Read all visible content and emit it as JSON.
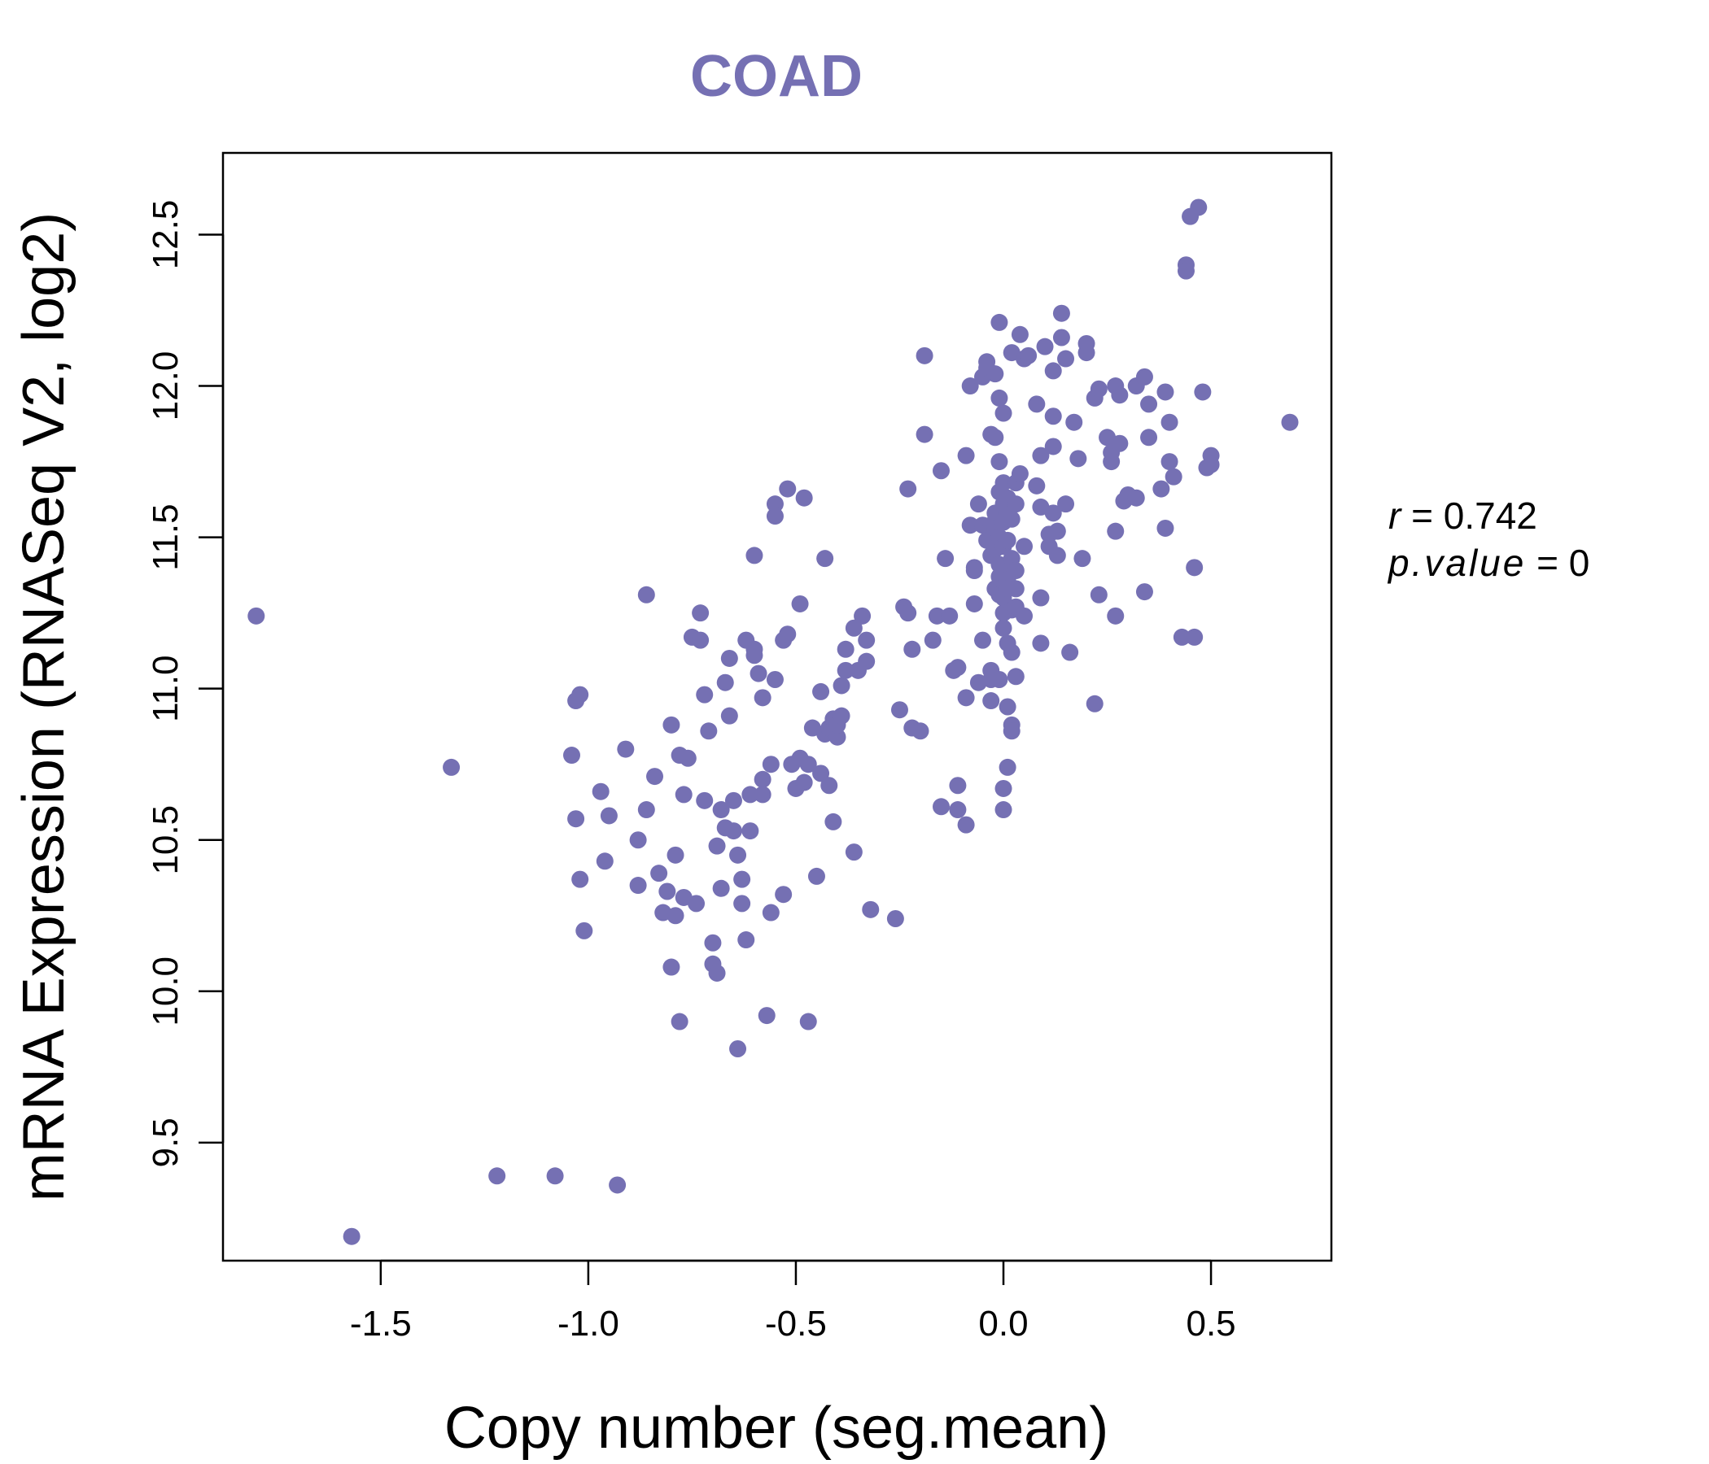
{
  "chart_data": {
    "type": "scatter",
    "title": "COAD",
    "xlabel": "Copy number (seg.mean)",
    "ylabel": "mRNA Expression (RNASeq V2, log2)",
    "xlim": [
      -1.88,
      0.79
    ],
    "ylim": [
      9.11,
      12.77
    ],
    "x_ticks": [
      -1.5,
      -1.0,
      -0.5,
      0.0,
      0.5
    ],
    "x_tick_labels": [
      "-1.5",
      "-1.0",
      "-0.5",
      "0.0",
      "0.5"
    ],
    "y_ticks": [
      9.5,
      10.0,
      10.5,
      11.0,
      11.5,
      12.0,
      12.5
    ],
    "y_tick_labels": [
      "9.5",
      "10.0",
      "10.5",
      "11.0",
      "11.5",
      "12.0",
      "12.5"
    ],
    "color": "#7570b3",
    "annotation": {
      "r_label": "r",
      "r_value": "0.742",
      "p_label": "p.value",
      "p_value": "0"
    },
    "points": [
      [
        -1.8,
        11.24
      ],
      [
        -1.57,
        9.19
      ],
      [
        -1.33,
        10.74
      ],
      [
        -1.22,
        9.39
      ],
      [
        -1.08,
        9.39
      ],
      [
        -0.93,
        9.36
      ],
      [
        -1.02,
        10.98
      ],
      [
        -1.03,
        10.96
      ],
      [
        -1.04,
        10.78
      ],
      [
        -1.03,
        10.57
      ],
      [
        -1.02,
        10.37
      ],
      [
        -1.01,
        10.2
      ],
      [
        -0.97,
        10.66
      ],
      [
        -0.96,
        10.43
      ],
      [
        -0.95,
        10.58
      ],
      [
        -0.91,
        10.8
      ],
      [
        -0.88,
        10.35
      ],
      [
        -0.88,
        10.5
      ],
      [
        -0.86,
        11.31
      ],
      [
        -0.86,
        10.6
      ],
      [
        -0.84,
        10.71
      ],
      [
        -0.83,
        10.39
      ],
      [
        -0.82,
        10.26
      ],
      [
        -0.81,
        10.33
      ],
      [
        -0.8,
        10.08
      ],
      [
        -0.8,
        10.88
      ],
      [
        -0.79,
        10.45
      ],
      [
        -0.78,
        10.78
      ],
      [
        -0.78,
        9.9
      ],
      [
        -0.79,
        10.25
      ],
      [
        -0.77,
        10.65
      ],
      [
        -0.77,
        10.31
      ],
      [
        -0.76,
        10.77
      ],
      [
        -0.75,
        11.17
      ],
      [
        -0.74,
        10.29
      ],
      [
        -0.73,
        11.25
      ],
      [
        -0.73,
        11.16
      ],
      [
        -0.72,
        10.98
      ],
      [
        -0.72,
        10.63
      ],
      [
        -0.71,
        10.86
      ],
      [
        -0.7,
        10.16
      ],
      [
        -0.7,
        10.09
      ],
      [
        -0.69,
        10.06
      ],
      [
        -0.69,
        10.48
      ],
      [
        -0.68,
        10.34
      ],
      [
        -0.68,
        10.6
      ],
      [
        -0.67,
        10.54
      ],
      [
        -0.67,
        11.02
      ],
      [
        -0.66,
        10.91
      ],
      [
        -0.66,
        11.1
      ],
      [
        -0.65,
        10.63
      ],
      [
        -0.65,
        10.53
      ],
      [
        -0.64,
        10.45
      ],
      [
        -0.64,
        9.81
      ],
      [
        -0.63,
        10.29
      ],
      [
        -0.63,
        10.37
      ],
      [
        -0.62,
        10.17
      ],
      [
        -0.62,
        11.16
      ],
      [
        -0.61,
        10.65
      ],
      [
        -0.61,
        10.53
      ],
      [
        -0.6,
        11.13
      ],
      [
        -0.6,
        11.44
      ],
      [
        -0.6,
        11.11
      ],
      [
        -0.59,
        11.05
      ],
      [
        -0.58,
        10.7
      ],
      [
        -0.58,
        10.65
      ],
      [
        -0.58,
        10.97
      ],
      [
        -0.57,
        9.92
      ],
      [
        -0.56,
        10.26
      ],
      [
        -0.56,
        10.75
      ],
      [
        -0.55,
        11.03
      ],
      [
        -0.55,
        11.61
      ],
      [
        -0.55,
        11.57
      ],
      [
        -0.53,
        10.32
      ],
      [
        -0.53,
        11.16
      ],
      [
        -0.52,
        11.18
      ],
      [
        -0.52,
        11.66
      ],
      [
        -0.51,
        10.75
      ],
      [
        -0.5,
        10.67
      ],
      [
        -0.49,
        11.28
      ],
      [
        -0.49,
        10.77
      ],
      [
        -0.48,
        10.69
      ],
      [
        -0.48,
        11.63
      ],
      [
        -0.47,
        10.75
      ],
      [
        -0.47,
        9.9
      ],
      [
        -0.46,
        10.87
      ],
      [
        -0.45,
        10.38
      ],
      [
        -0.44,
        10.72
      ],
      [
        -0.44,
        10.99
      ],
      [
        -0.43,
        10.85
      ],
      [
        -0.43,
        11.43
      ],
      [
        -0.42,
        10.68
      ],
      [
        -0.42,
        10.87
      ],
      [
        -0.41,
        10.56
      ],
      [
        -0.41,
        10.9
      ],
      [
        -0.4,
        10.84
      ],
      [
        -0.4,
        10.88
      ],
      [
        -0.39,
        10.91
      ],
      [
        -0.39,
        11.01
      ],
      [
        -0.38,
        11.06
      ],
      [
        -0.38,
        11.13
      ],
      [
        -0.36,
        11.2
      ],
      [
        -0.36,
        10.46
      ],
      [
        -0.35,
        11.06
      ],
      [
        -0.34,
        11.24
      ],
      [
        -0.33,
        11.09
      ],
      [
        -0.33,
        11.16
      ],
      [
        -0.32,
        10.27
      ],
      [
        -0.26,
        10.24
      ],
      [
        -0.25,
        10.93
      ],
      [
        -0.24,
        11.27
      ],
      [
        -0.23,
        11.25
      ],
      [
        -0.23,
        11.66
      ],
      [
        -0.22,
        11.13
      ],
      [
        -0.22,
        10.87
      ],
      [
        -0.2,
        10.86
      ],
      [
        -0.19,
        12.1
      ],
      [
        -0.19,
        11.84
      ],
      [
        -0.17,
        11.16
      ],
      [
        -0.16,
        11.24
      ],
      [
        -0.15,
        10.61
      ],
      [
        -0.15,
        11.72
      ],
      [
        -0.14,
        11.43
      ],
      [
        -0.13,
        11.24
      ],
      [
        -0.12,
        11.06
      ],
      [
        -0.11,
        11.07
      ],
      [
        -0.11,
        10.6
      ],
      [
        -0.11,
        10.68
      ],
      [
        -0.09,
        10.55
      ],
      [
        -0.09,
        11.77
      ],
      [
        -0.09,
        10.97
      ],
      [
        -0.08,
        11.54
      ],
      [
        -0.08,
        12.0
      ],
      [
        -0.07,
        11.4
      ],
      [
        -0.07,
        11.39
      ],
      [
        -0.07,
        11.28
      ],
      [
        -0.06,
        11.61
      ],
      [
        -0.06,
        11.02
      ],
      [
        -0.05,
        11.16
      ],
      [
        -0.05,
        12.03
      ],
      [
        -0.05,
        11.54
      ],
      [
        -0.04,
        12.08
      ],
      [
        -0.04,
        12.06
      ],
      [
        -0.04,
        11.49
      ],
      [
        -0.03,
        11.54
      ],
      [
        -0.03,
        11.44
      ],
      [
        -0.03,
        11.06
      ],
      [
        -0.03,
        11.03
      ],
      [
        -0.03,
        10.96
      ],
      [
        -0.03,
        11.84
      ],
      [
        -0.02,
        11.58
      ],
      [
        -0.02,
        12.04
      ],
      [
        -0.02,
        11.33
      ],
      [
        -0.02,
        11.83
      ],
      [
        -0.02,
        11.53
      ],
      [
        -0.02,
        11.46
      ],
      [
        -0.01,
        11.75
      ],
      [
        -0.01,
        11.65
      ],
      [
        -0.01,
        11.5
      ],
      [
        -0.01,
        11.41
      ],
      [
        -0.01,
        11.37
      ],
      [
        -0.01,
        11.31
      ],
      [
        -0.01,
        11.03
      ],
      [
        -0.01,
        12.21
      ],
      [
        -0.01,
        11.96
      ],
      [
        0.0,
        11.68
      ],
      [
        0.0,
        11.61
      ],
      [
        0.0,
        11.55
      ],
      [
        0.0,
        11.47
      ],
      [
        0.0,
        11.4
      ],
      [
        0.0,
        11.3
      ],
      [
        0.0,
        11.25
      ],
      [
        0.0,
        11.2
      ],
      [
        0.0,
        10.67
      ],
      [
        0.0,
        10.6
      ],
      [
        0.0,
        11.91
      ],
      [
        0.01,
        11.58
      ],
      [
        0.01,
        11.36
      ],
      [
        0.01,
        11.15
      ],
      [
        0.01,
        10.74
      ],
      [
        0.01,
        10.94
      ],
      [
        0.01,
        11.33
      ],
      [
        0.01,
        11.63
      ],
      [
        0.01,
        11.49
      ],
      [
        0.02,
        11.43
      ],
      [
        0.02,
        11.26
      ],
      [
        0.02,
        11.12
      ],
      [
        0.02,
        10.88
      ],
      [
        0.02,
        10.86
      ],
      [
        0.02,
        12.11
      ],
      [
        0.02,
        11.56
      ],
      [
        0.03,
        11.33
      ],
      [
        0.03,
        11.04
      ],
      [
        0.03,
        11.27
      ],
      [
        0.03,
        11.39
      ],
      [
        0.03,
        11.61
      ],
      [
        0.03,
        11.68
      ],
      [
        0.04,
        12.17
      ],
      [
        0.04,
        11.71
      ],
      [
        0.05,
        12.09
      ],
      [
        0.05,
        11.47
      ],
      [
        0.05,
        11.24
      ],
      [
        0.06,
        12.1
      ],
      [
        0.08,
        11.67
      ],
      [
        0.08,
        11.94
      ],
      [
        0.09,
        11.6
      ],
      [
        0.09,
        11.77
      ],
      [
        0.09,
        11.3
      ],
      [
        0.09,
        11.15
      ],
      [
        0.1,
        12.13
      ],
      [
        0.11,
        11.47
      ],
      [
        0.11,
        11.51
      ],
      [
        0.12,
        12.05
      ],
      [
        0.12,
        11.8
      ],
      [
        0.12,
        11.9
      ],
      [
        0.12,
        11.58
      ],
      [
        0.13,
        11.44
      ],
      [
        0.13,
        11.52
      ],
      [
        0.14,
        12.16
      ],
      [
        0.14,
        12.24
      ],
      [
        0.15,
        12.09
      ],
      [
        0.15,
        11.61
      ],
      [
        0.16,
        11.12
      ],
      [
        0.17,
        11.88
      ],
      [
        0.18,
        11.76
      ],
      [
        0.19,
        11.43
      ],
      [
        0.2,
        12.14
      ],
      [
        0.2,
        12.11
      ],
      [
        0.22,
        11.96
      ],
      [
        0.22,
        10.95
      ],
      [
        0.23,
        11.99
      ],
      [
        0.23,
        11.31
      ],
      [
        0.25,
        11.83
      ],
      [
        0.26,
        11.78
      ],
      [
        0.26,
        11.75
      ],
      [
        0.27,
        11.24
      ],
      [
        0.27,
        12.0
      ],
      [
        0.27,
        11.52
      ],
      [
        0.28,
        11.81
      ],
      [
        0.28,
        11.97
      ],
      [
        0.29,
        11.62
      ],
      [
        0.3,
        11.64
      ],
      [
        0.32,
        12.0
      ],
      [
        0.32,
        11.63
      ],
      [
        0.34,
        11.32
      ],
      [
        0.34,
        12.03
      ],
      [
        0.35,
        11.83
      ],
      [
        0.35,
        11.94
      ],
      [
        0.38,
        11.66
      ],
      [
        0.39,
        11.53
      ],
      [
        0.39,
        11.98
      ],
      [
        0.4,
        11.88
      ],
      [
        0.4,
        11.75
      ],
      [
        0.41,
        11.7
      ],
      [
        0.43,
        11.17
      ],
      [
        0.44,
        12.4
      ],
      [
        0.44,
        12.38
      ],
      [
        0.45,
        12.56
      ],
      [
        0.46,
        11.4
      ],
      [
        0.46,
        11.17
      ],
      [
        0.47,
        12.59
      ],
      [
        0.48,
        11.98
      ],
      [
        0.49,
        11.73
      ],
      [
        0.5,
        11.77
      ],
      [
        0.5,
        11.74
      ],
      [
        0.69,
        11.88
      ]
    ]
  }
}
